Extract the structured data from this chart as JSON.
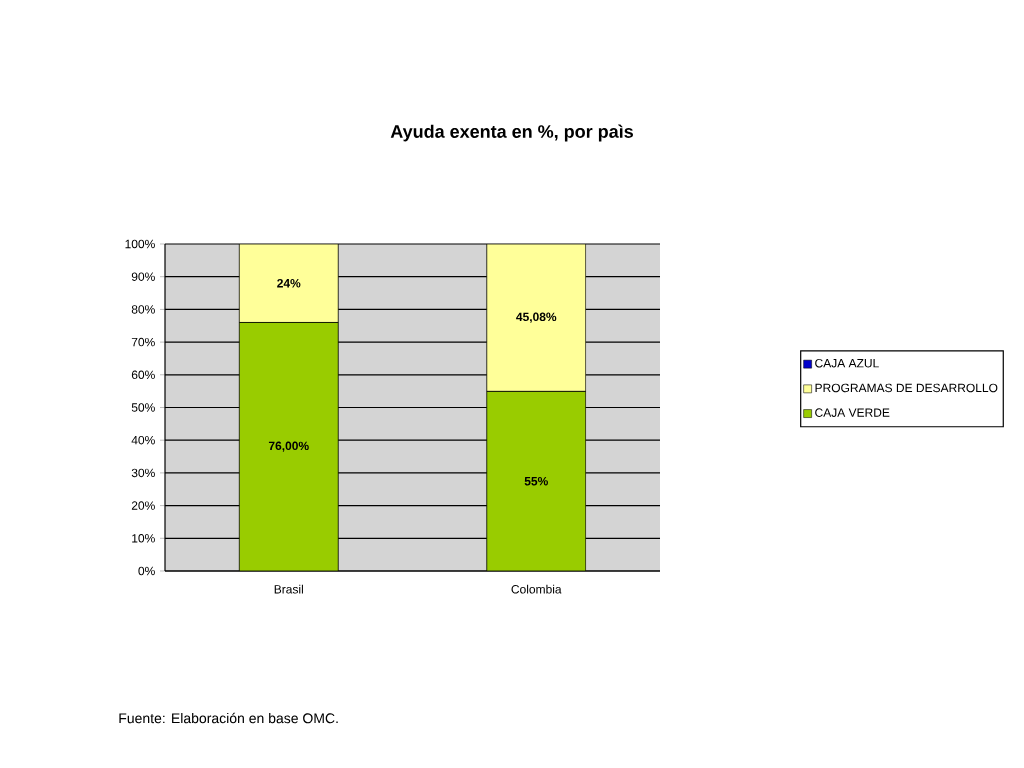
{
  "chart_data": {
    "type": "bar",
    "title": "Ayuda exenta en %, por paìs",
    "categories": [
      "Brasil",
      "Colombia"
    ],
    "stacked": true,
    "series": [
      {
        "name": "CAJA VERDE",
        "color": "#99cc00",
        "values": [
          76,
          54.92
        ],
        "value_labels": [
          "76,00%",
          "55%"
        ]
      },
      {
        "name": "PROGRAMAS DE DESARROLLO",
        "color": "#ffff99",
        "values": [
          24,
          45.08
        ],
        "value_labels": [
          "24%",
          "45,08%"
        ]
      },
      {
        "name": "CAJA AZUL",
        "color": "#0000cc",
        "values": [
          0,
          0
        ]
      }
    ],
    "ylim": [
      0,
      100
    ],
    "yticks": [
      {
        "value": 0,
        "label": "0%"
      },
      {
        "value": 10,
        "label": "10%"
      },
      {
        "value": 20,
        "label": "20%"
      },
      {
        "value": 30,
        "label": "30%"
      },
      {
        "value": 40,
        "label": "40%"
      },
      {
        "value": 50,
        "label": "50%"
      },
      {
        "value": 60,
        "label": "60%"
      },
      {
        "value": 70,
        "label": "70%"
      },
      {
        "value": 80,
        "label": "80%"
      },
      {
        "value": 90,
        "label": "90%"
      },
      {
        "value": 100,
        "label": "100%"
      }
    ],
    "grid": "y",
    "legend": "right",
    "annotations": [
      "Fuente: Elaboración en base OMC."
    ]
  }
}
